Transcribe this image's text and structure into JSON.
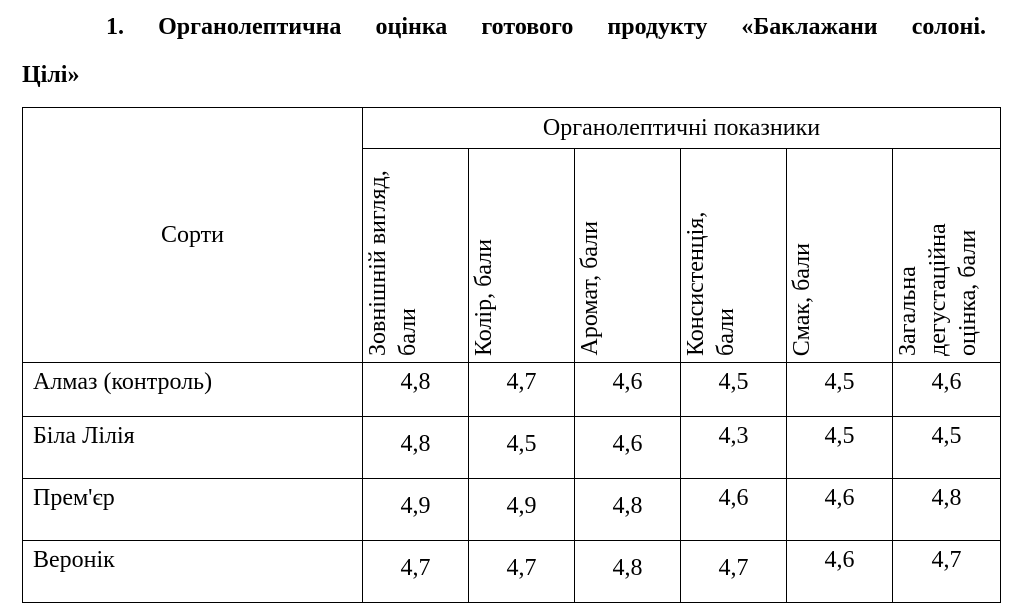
{
  "title_line1": "1. Органолептична оцінка готового продукту «Баклажани солоні.",
  "title_line2": "Цілі»",
  "table": {
    "row_header": "Сорти",
    "group_header": "Органолептичні показники",
    "columns": [
      "Зовнішній вигляд, бали",
      "Колір, бали",
      "Аромат, бали",
      "Консистенція, бали",
      "Смак, бали",
      "Загальна дегустаційна оцінка, бали"
    ],
    "rows": [
      {
        "name": "Алмаз (контроль)",
        "values": [
          "4,8",
          "4,7",
          "4,6",
          "4,5",
          "4,5",
          "4,6"
        ]
      },
      {
        "name": "Біла Лілія",
        "values": [
          "4,8",
          "4,5",
          "4,6",
          "4,3",
          "4,5",
          "4,5"
        ]
      },
      {
        "name": "Прем'єр",
        "values": [
          "4,9",
          "4,9",
          "4,8",
          "4,6",
          "4,6",
          "4,8"
        ]
      },
      {
        "name": "Веронік",
        "values": [
          "4,7",
          "4,7",
          "4,8",
          "4,7",
          "4,6",
          "4,7"
        ]
      }
    ]
  }
}
